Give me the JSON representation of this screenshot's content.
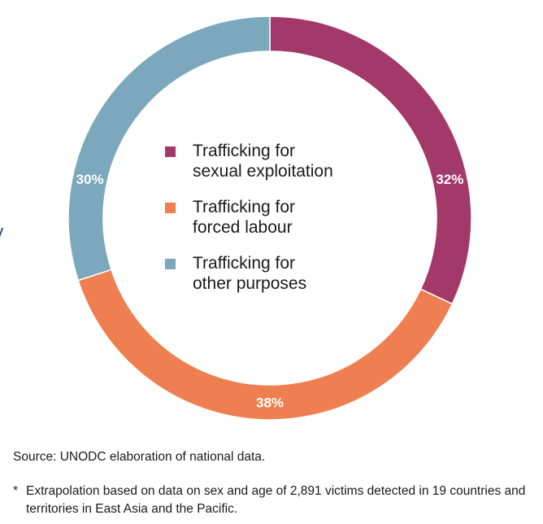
{
  "chart_data": {
    "type": "pie",
    "variant": "donut",
    "categories": [
      "Trafficking for sexual exploitation",
      "Trafficking for forced labour",
      "Trafficking for other purposes"
    ],
    "values": [
      32,
      38,
      30
    ],
    "value_labels": [
      "32%",
      "38%",
      "30%"
    ],
    "colors": [
      "#A3386A",
      "#EF7F50",
      "#7BA8BC"
    ],
    "legend": [
      {
        "line1": "Trafficking for",
        "line2": "sexual exploitation"
      },
      {
        "line1": "Trafficking for",
        "line2": "forced labour"
      },
      {
        "line1": "Trafficking for",
        "line2": "other purposes"
      }
    ],
    "legend_position": "center"
  },
  "source": "Source: UNODC elaboration of national data.",
  "footnote": {
    "marker": "*",
    "text": "Extrapolation based on data on sex and age of 2,891 victims detected in 19 countries and territories in East Asia and the Pacific."
  }
}
